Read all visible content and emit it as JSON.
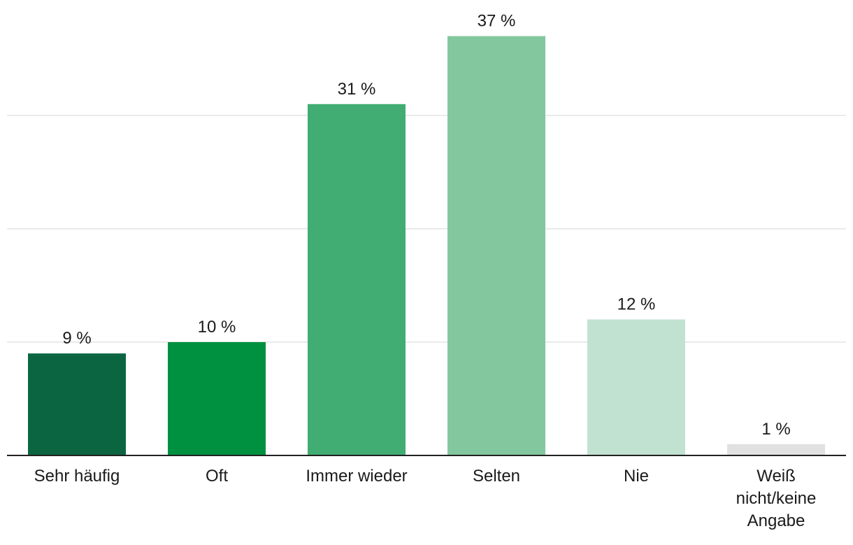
{
  "chart_data": {
    "type": "bar",
    "title": "",
    "xlabel": "",
    "ylabel": "",
    "ylim": [
      0,
      40
    ],
    "gridlines": [
      10,
      20,
      30
    ],
    "grid": true,
    "legend": "none",
    "categories": [
      [
        "Sehr häufig"
      ],
      [
        "Oft"
      ],
      [
        "Immer wieder"
      ],
      [
        "Selten"
      ],
      [
        "Nie"
      ],
      [
        "Weiß",
        "nicht/keine",
        "Angabe"
      ]
    ],
    "values": [
      9,
      10,
      31,
      37,
      12,
      1
    ],
    "value_labels": [
      "9 %",
      "10 %",
      "31 %",
      "37 %",
      "12 %",
      "1 %"
    ],
    "colors": [
      "#0b6541",
      "#009140",
      "#41ad73",
      "#83c79f",
      "#c1e2d0",
      "#e1e1e1"
    ],
    "grid_color": "#e3e3e3",
    "axis_color": "#222222"
  }
}
